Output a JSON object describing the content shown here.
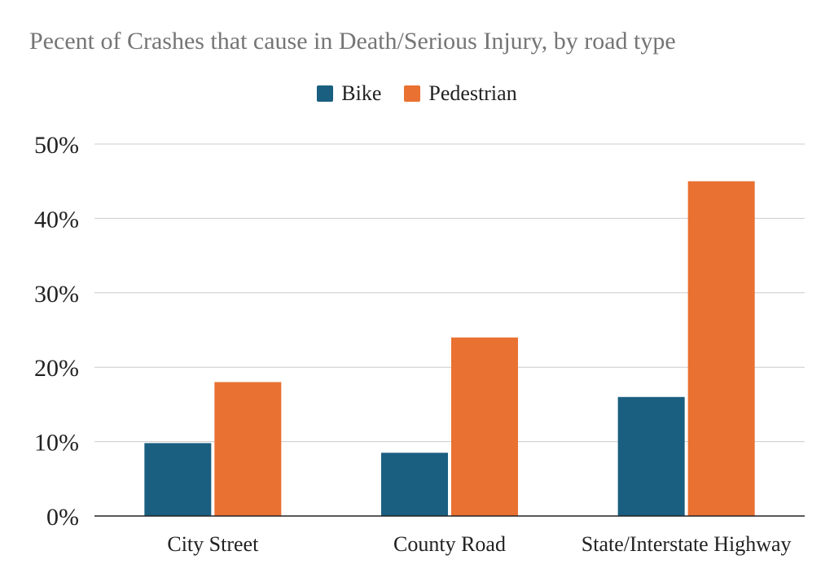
{
  "chart_data": {
    "type": "bar",
    "title": "Pecent of Crashes that cause in Death/Serious Injury, by road type",
    "xlabel": "",
    "ylabel": "",
    "categories": [
      "City Street",
      "County Road",
      "State/Interstate Highway"
    ],
    "series": [
      {
        "name": "Bike",
        "values": [
          9.8,
          8.5,
          16
        ],
        "color": "#1a5e80"
      },
      {
        "name": "Pedestrian",
        "values": [
          18,
          24,
          45
        ],
        "color": "#e97132"
      }
    ],
    "ylim": [
      0,
      50
    ],
    "yticks": [
      "0%",
      "10%",
      "20%",
      "30%",
      "40%",
      "50%"
    ],
    "grid": true,
    "legend_position": "top-center"
  }
}
